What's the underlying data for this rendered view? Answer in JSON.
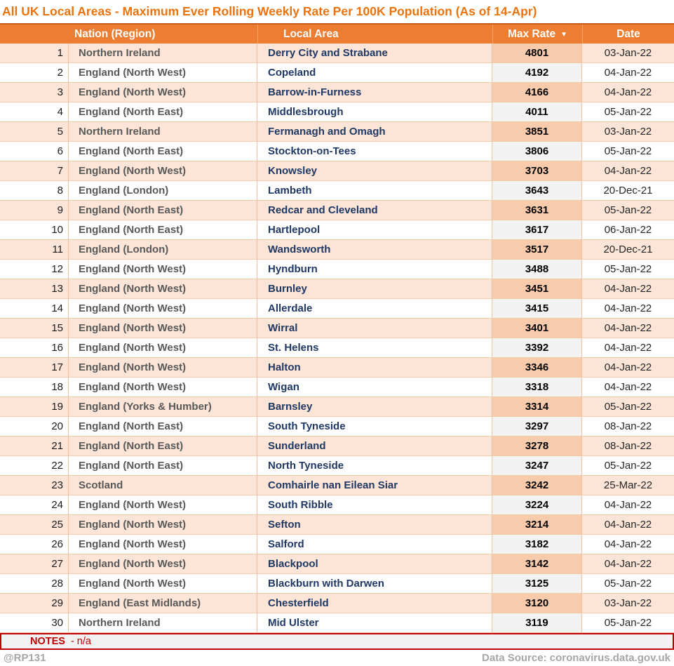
{
  "title": "All UK Local Areas - Maximum Ever Rolling Weekly Rate Per 100K Population (As of 14-Apr)",
  "chart_data": {
    "type": "table",
    "title": "All UK Local Areas - Maximum Ever Rolling Weekly Rate Per 100K Population (As of 14-Apr)",
    "columns": [
      "",
      "Nation (Region)",
      "Local Area",
      "Max Rate",
      "Date"
    ],
    "sort": {
      "column": "Max Rate",
      "direction": "desc",
      "icon": "▼"
    },
    "rows": [
      [
        "1",
        "Northern Ireland",
        "Derry City and Strabane",
        "4801",
        "03-Jan-22"
      ],
      [
        "2",
        "England (North West)",
        "Copeland",
        "4192",
        "04-Jan-22"
      ],
      [
        "3",
        "England (North West)",
        "Barrow-in-Furness",
        "4166",
        "04-Jan-22"
      ],
      [
        "4",
        "England (North East)",
        "Middlesbrough",
        "4011",
        "05-Jan-22"
      ],
      [
        "5",
        "Northern Ireland",
        "Fermanagh and Omagh",
        "3851",
        "03-Jan-22"
      ],
      [
        "6",
        "England (North East)",
        "Stockton-on-Tees",
        "3806",
        "05-Jan-22"
      ],
      [
        "7",
        "England (North West)",
        "Knowsley",
        "3703",
        "04-Jan-22"
      ],
      [
        "8",
        "England (London)",
        "Lambeth",
        "3643",
        "20-Dec-21"
      ],
      [
        "9",
        "England (North East)",
        "Redcar and Cleveland",
        "3631",
        "05-Jan-22"
      ],
      [
        "10",
        "England (North East)",
        "Hartlepool",
        "3617",
        "06-Jan-22"
      ],
      [
        "11",
        "England (London)",
        "Wandsworth",
        "3517",
        "20-Dec-21"
      ],
      [
        "12",
        "England (North West)",
        "Hyndburn",
        "3488",
        "05-Jan-22"
      ],
      [
        "13",
        "England (North West)",
        "Burnley",
        "3451",
        "04-Jan-22"
      ],
      [
        "14",
        "England (North West)",
        "Allerdale",
        "3415",
        "04-Jan-22"
      ],
      [
        "15",
        "England (North West)",
        "Wirral",
        "3401",
        "04-Jan-22"
      ],
      [
        "16",
        "England (North West)",
        "St. Helens",
        "3392",
        "04-Jan-22"
      ],
      [
        "17",
        "England (North West)",
        "Halton",
        "3346",
        "04-Jan-22"
      ],
      [
        "18",
        "England (North West)",
        "Wigan",
        "3318",
        "04-Jan-22"
      ],
      [
        "19",
        "England (Yorks & Humber)",
        "Barnsley",
        "3314",
        "05-Jan-22"
      ],
      [
        "20",
        "England (North East)",
        "South Tyneside",
        "3297",
        "08-Jan-22"
      ],
      [
        "21",
        "England (North East)",
        "Sunderland",
        "3278",
        "08-Jan-22"
      ],
      [
        "22",
        "England (North East)",
        "North Tyneside",
        "3247",
        "05-Jan-22"
      ],
      [
        "23",
        "Scotland",
        "Comhairle nan Eilean Siar",
        "3242",
        "25-Mar-22"
      ],
      [
        "24",
        "England (North West)",
        "South Ribble",
        "3224",
        "04-Jan-22"
      ],
      [
        "25",
        "England (North West)",
        "Sefton",
        "3214",
        "04-Jan-22"
      ],
      [
        "26",
        "England (North West)",
        "Salford",
        "3182",
        "04-Jan-22"
      ],
      [
        "27",
        "England (North West)",
        "Blackpool",
        "3142",
        "04-Jan-22"
      ],
      [
        "28",
        "England (North West)",
        "Blackburn with Darwen",
        "3125",
        "05-Jan-22"
      ],
      [
        "29",
        "England (East Midlands)",
        "Chesterfield",
        "3120",
        "03-Jan-22"
      ],
      [
        "30",
        "Northern Ireland",
        "Mid Ulster",
        "3119",
        "05-Jan-22"
      ]
    ]
  },
  "notes": {
    "label": "NOTES",
    "text": "- n/a"
  },
  "footer": {
    "handle": "@RP131",
    "source": "Data Source: coronavirus.data.gov.uk"
  },
  "colors": {
    "accent_orange": "#ED7D31",
    "header_top_border": "#C55A11",
    "row_alt_fill": "#FCE4D6",
    "rate_alt_fill": "#F8CBAD",
    "rate_even_fill": "#F2F2F2",
    "area_text": "#1F3864",
    "nation_text": "#595959",
    "notes_red": "#C00000",
    "footer_gray": "#A6A6A6"
  }
}
